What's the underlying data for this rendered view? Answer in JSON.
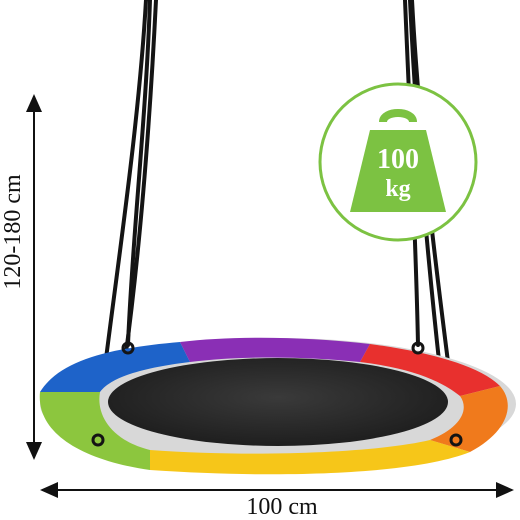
{
  "product": {
    "type": "round-saucer-tree-swing",
    "ring_colors": [
      "#1e63c9",
      "#8a2fb5",
      "#e8302e",
      "#f07a1c",
      "#f6c619",
      "#8cc63e"
    ],
    "seat_color": "#2a2a2a",
    "rope_color": "#141414"
  },
  "badge": {
    "number": "100",
    "unit": "kg",
    "accent_color": "#7cc242",
    "icon": "weight-icon"
  },
  "dimensions": {
    "height_label": "120-180 cm",
    "width_label": "100 cm"
  }
}
